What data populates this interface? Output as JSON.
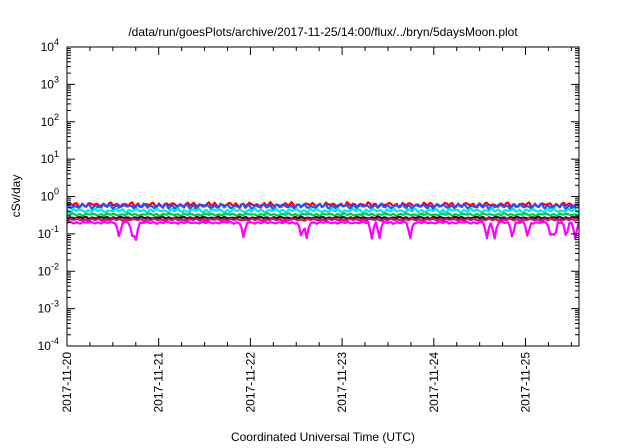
{
  "chart_data": {
    "type": "line",
    "title": "/data/run/goesPlots/archive/2017-11-25/14:00/flux/../bryn/5daysMoon.plot",
    "xlabel": "Coordinated Universal Time (UTC)",
    "ylabel": "cSv/day",
    "y_scale": "log",
    "ylim": [
      0.0001,
      10000
    ],
    "xlim": [
      "2017-11-20T00:00",
      "2017-11-25T14:00"
    ],
    "x_ticks": [
      "2017-11-20",
      "2017-11-21",
      "2017-11-22",
      "2017-11-23",
      "2017-11-24",
      "2017-11-25"
    ],
    "y_ticks": [
      {
        "base": "10",
        "exp": "-4"
      },
      {
        "base": "10",
        "exp": "-3"
      },
      {
        "base": "10",
        "exp": "-2"
      },
      {
        "base": "10",
        "exp": "-1"
      },
      {
        "base": "10",
        "exp": "0"
      },
      {
        "base": "10",
        "exp": "1"
      },
      {
        "base": "10",
        "exp": "2"
      },
      {
        "base": "10",
        "exp": "3"
      },
      {
        "base": "10",
        "exp": "4"
      }
    ],
    "grid": false,
    "legend": "none",
    "series": [
      {
        "color": "#ff0000",
        "level": 0.6,
        "variation": 0.12,
        "dips": false
      },
      {
        "color": "#2255ff",
        "level": 0.55,
        "variation": 0.12,
        "dips": false
      },
      {
        "color": "#00e5ee",
        "level": 0.42,
        "variation": 0.1,
        "dips": false
      },
      {
        "color": "#00cc44",
        "level": 0.33,
        "variation": 0.06,
        "dips": false
      },
      {
        "color": "#1a1a1a",
        "level": 0.27,
        "variation": 0.05,
        "dips": false
      },
      {
        "color": "#cc1177",
        "level": 0.24,
        "variation": 0.05,
        "dips": false
      },
      {
        "color": "#ff00ff",
        "level": 0.2,
        "variation": 0.05,
        "dips": true
      }
    ]
  }
}
